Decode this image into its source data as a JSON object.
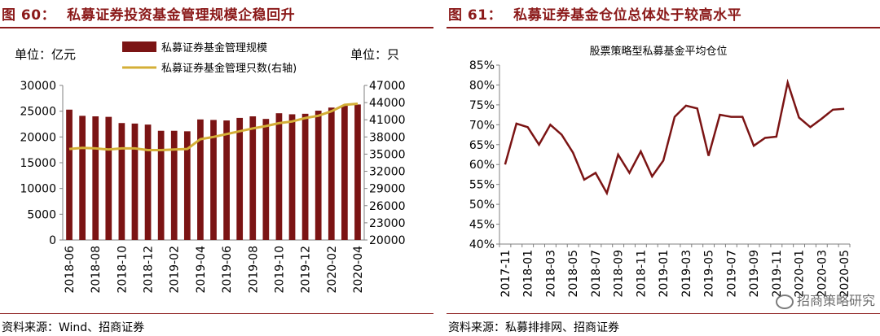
{
  "left": {
    "fig_number": "图 60：",
    "fig_title": "私募证券投资基金管理规模企稳回升",
    "unit_left": "单位：亿元",
    "unit_right": "单位：只",
    "source": "资料来源：Wind、招商证券"
  },
  "right": {
    "fig_number": "图 61：",
    "fig_title": "私募证券基金仓位总体处于较高水平",
    "source": "资料来源：私募排排网、招商证券"
  },
  "watermark": "招商策略研究",
  "colors": {
    "title": "#8B1A1A",
    "bar": "#7B1414",
    "line_gold": "#D4AF37",
    "line_red": "#7B1414",
    "axis": "#808080"
  },
  "chart_data": [
    {
      "type": "bar",
      "categories": [
        "2018-06",
        "2018-07",
        "2018-08",
        "2018-09",
        "2018-10",
        "2018-11",
        "2018-12",
        "2019-01",
        "2019-02",
        "2019-03",
        "2019-04",
        "2019-05",
        "2019-06",
        "2019-07",
        "2019-08",
        "2019-09",
        "2019-10",
        "2019-11",
        "2019-12",
        "2020-01",
        "2020-02",
        "2020-03",
        "2020-04"
      ],
      "x_tick_labels": [
        "2018-06",
        "2018-08",
        "2018-10",
        "2018-12",
        "2019-02",
        "2019-04",
        "2019-06",
        "2019-08",
        "2019-10",
        "2019-12",
        "2020-02",
        "2020-04"
      ],
      "series": [
        {
          "name": "私募证券基金管理规模",
          "type": "bar",
          "axis": "left",
          "values": [
            25300,
            24100,
            24000,
            23900,
            22700,
            22600,
            22400,
            21200,
            21200,
            21100,
            23400,
            23300,
            23200,
            23700,
            24000,
            23500,
            24600,
            24400,
            24500,
            25100,
            25700,
            26200,
            26300
          ]
        },
        {
          "name": "私募证券基金管理只数(右轴)",
          "type": "line",
          "axis": "right",
          "values": [
            35900,
            36100,
            36000,
            35800,
            36000,
            36000,
            35700,
            35700,
            35800,
            35900,
            37600,
            38000,
            38500,
            39000,
            39500,
            39900,
            40400,
            40700,
            41300,
            41700,
            42500,
            43600,
            43800
          ]
        }
      ],
      "y_left": {
        "ylim": [
          0,
          30000
        ],
        "ticks": [
          "0",
          "5000",
          "10000",
          "15000",
          "20000",
          "25000",
          "30000"
        ]
      },
      "y_right": {
        "ylim": [
          20000,
          47000
        ],
        "ticks": [
          "20000",
          "23000",
          "26000",
          "29000",
          "32000",
          "35000",
          "38000",
          "41000",
          "44000",
          "47000"
        ]
      },
      "legend_placement": "top-center",
      "grid": false
    },
    {
      "type": "line",
      "title": "股票策略型私募基金平均仓位",
      "x": [
        "2017-11",
        "2017-12",
        "2018-01",
        "2018-02",
        "2018-03",
        "2018-04",
        "2018-05",
        "2018-06",
        "2018-07",
        "2018-08",
        "2018-09",
        "2018-10",
        "2018-11",
        "2018-12",
        "2019-01",
        "2019-02",
        "2019-03",
        "2019-04",
        "2019-05",
        "2019-06",
        "2019-07",
        "2019-08",
        "2019-09",
        "2019-10",
        "2019-11",
        "2019-12",
        "2020-01",
        "2020-02",
        "2020-03",
        "2020-04",
        "2020-05"
      ],
      "x_tick_labels": [
        "2017-11",
        "2018-01",
        "2018-03",
        "2018-05",
        "2018-07",
        "2018-09",
        "2018-11",
        "2019-01",
        "2019-03",
        "2019-05",
        "2019-07",
        "2019-09",
        "2019-11",
        "2020-01",
        "2020-03",
        "2020-05"
      ],
      "values": [
        60.0,
        70.3,
        69.4,
        65.0,
        70.0,
        67.5,
        63.0,
        56.2,
        57.9,
        52.8,
        62.5,
        57.9,
        63.3,
        57.0,
        61.0,
        72.0,
        74.8,
        74.1,
        62.2,
        72.5,
        72.0,
        72.0,
        64.7,
        66.7,
        67.0,
        80.6,
        71.8,
        69.4,
        71.5,
        73.8,
        74.0
      ],
      "ylim": [
        40,
        85
      ],
      "y_tick_labels": [
        "40%",
        "45%",
        "50%",
        "55%",
        "60%",
        "65%",
        "70%",
        "75%",
        "80%",
        "85%"
      ],
      "grid": false
    }
  ]
}
